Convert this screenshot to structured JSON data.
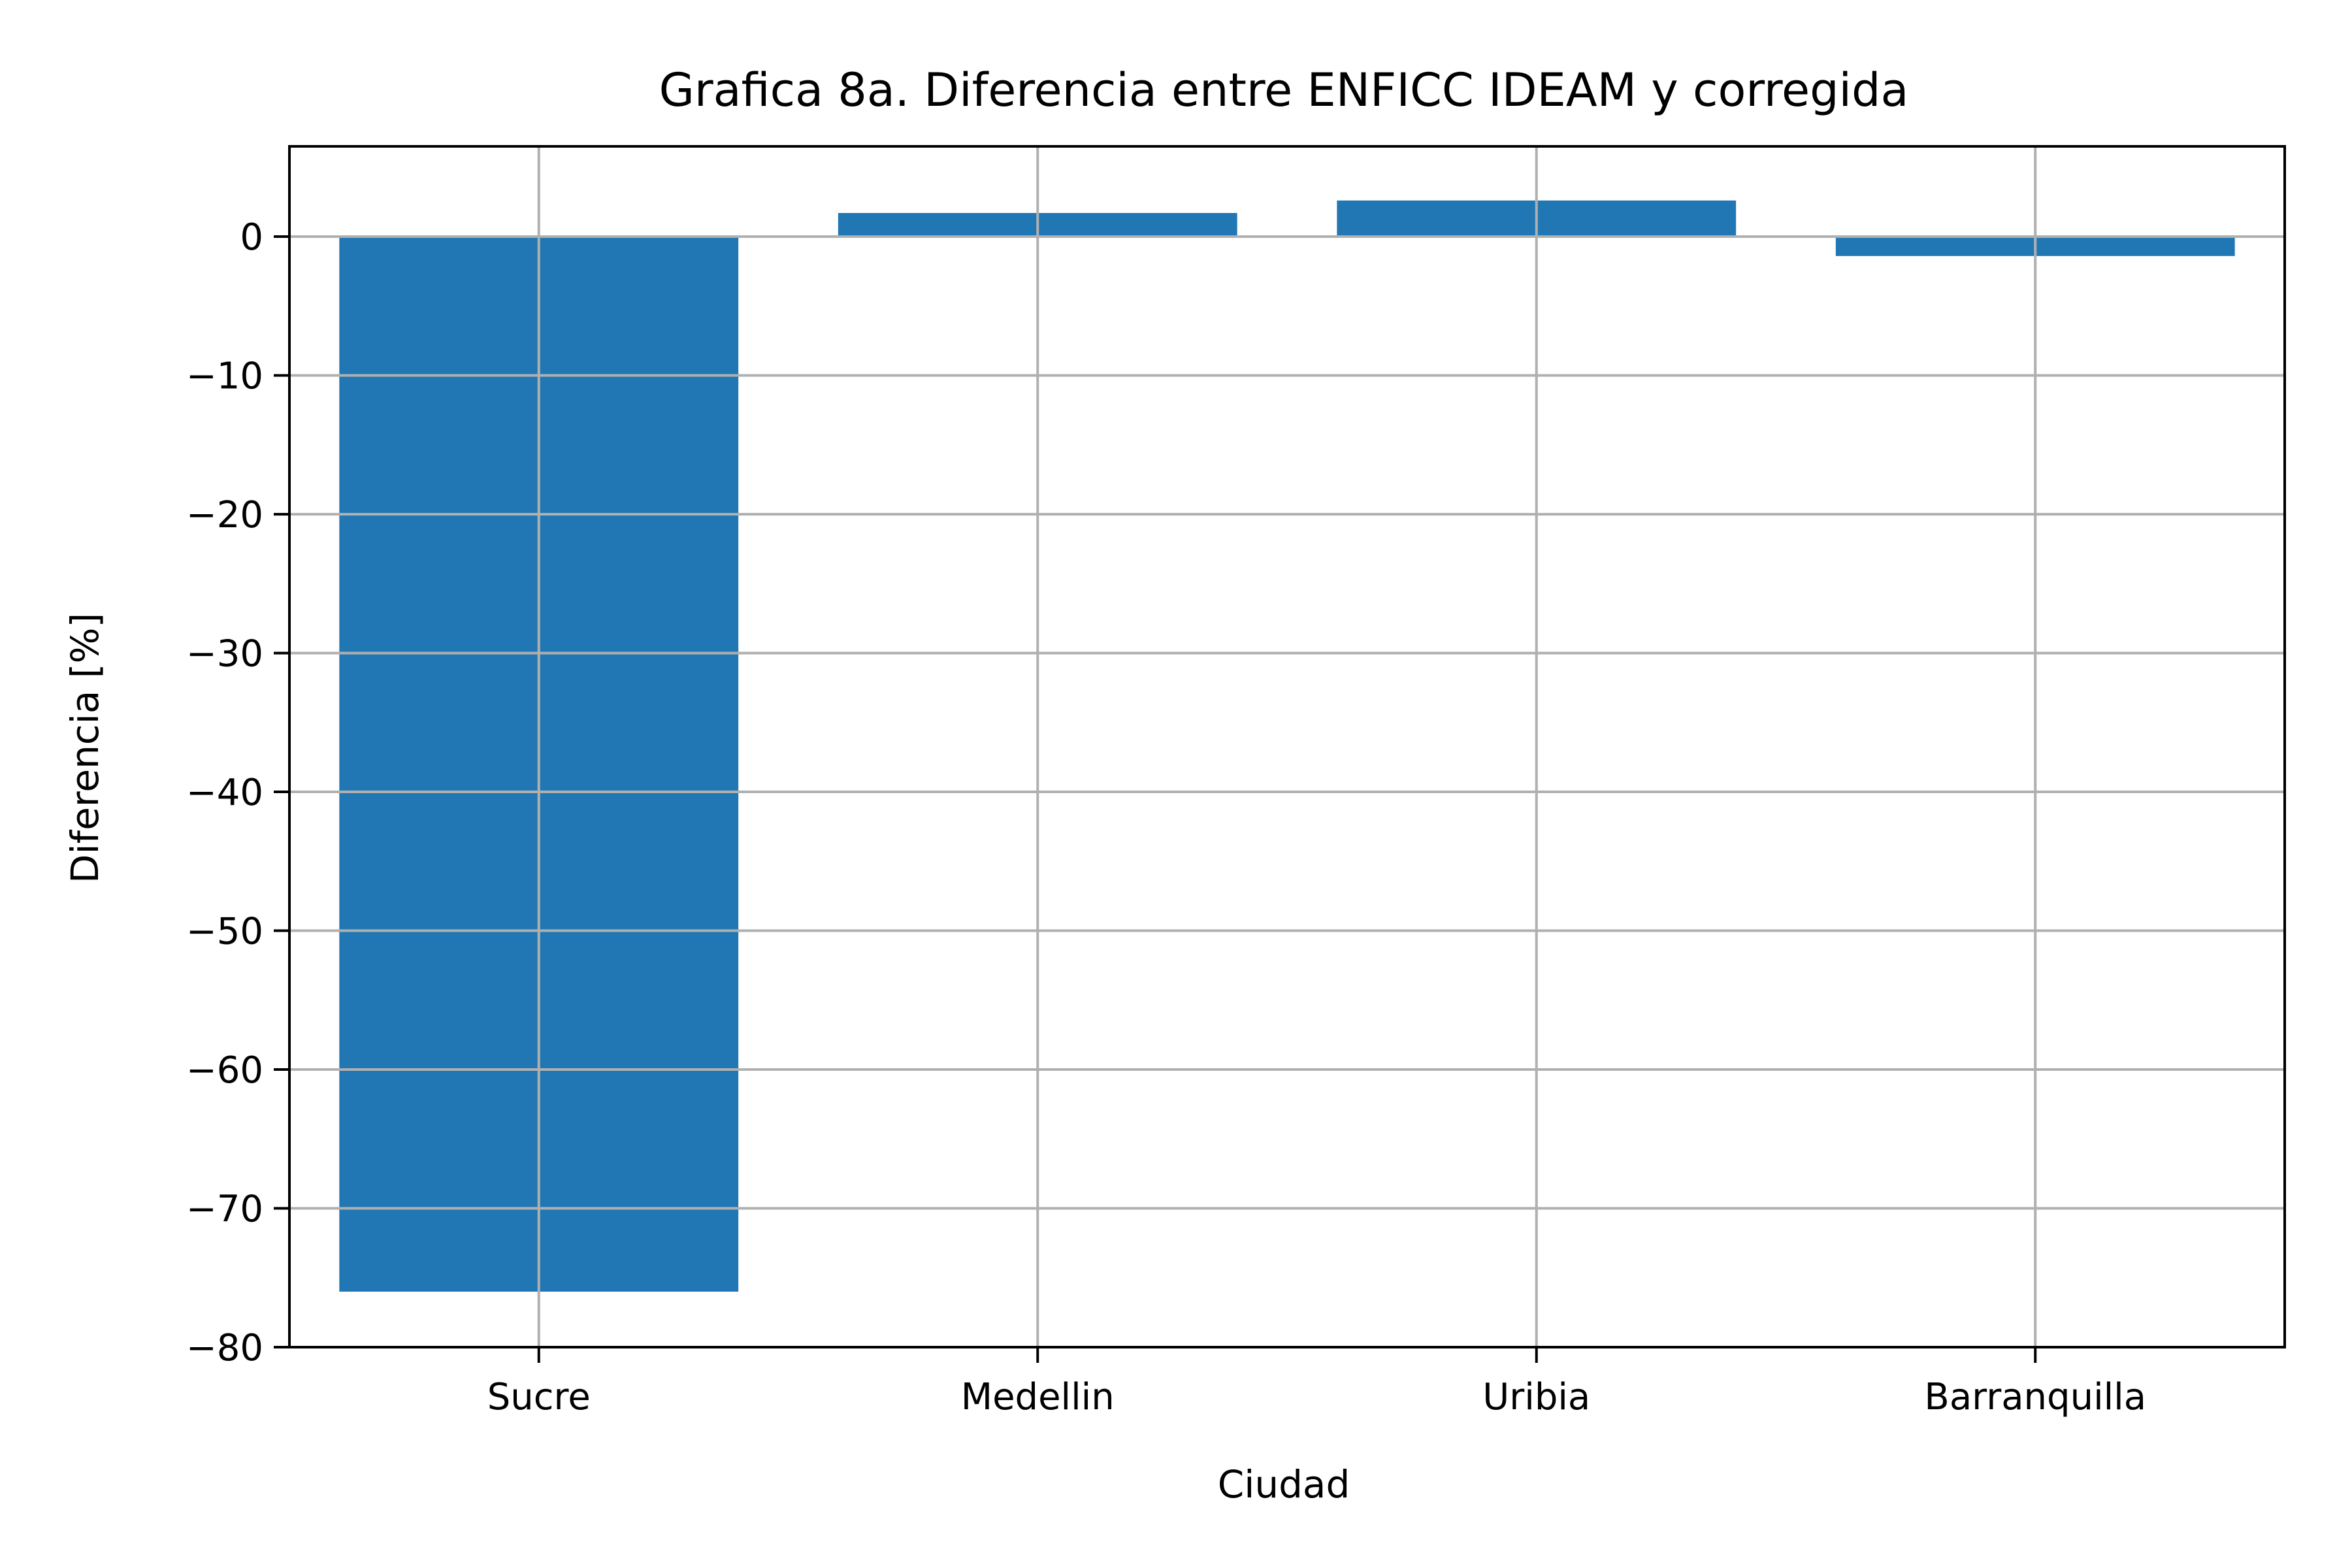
{
  "chart_data": {
    "type": "bar",
    "title": "Grafica 8a. Diferencia entre ENFICC IDEAM y corregida",
    "xlabel": "Ciudad",
    "ylabel": "Diferencia [%]",
    "categories": [
      "Sucre",
      "Medellin",
      "Uribia",
      "Barranquilla"
    ],
    "values": [
      -76.0,
      1.7,
      2.6,
      -1.4
    ],
    "ylim": [
      -80,
      6.5
    ],
    "yticks": [
      0,
      -10,
      -20,
      -30,
      -40,
      -50,
      -60,
      -70,
      -80
    ],
    "ytick_labels": [
      "0",
      "−10",
      "−20",
      "−30",
      "−40",
      "−50",
      "−60",
      "−70",
      "−80"
    ],
    "grid": true,
    "bar_color": "#2077b4",
    "grid_color": "#b0b0b0"
  }
}
